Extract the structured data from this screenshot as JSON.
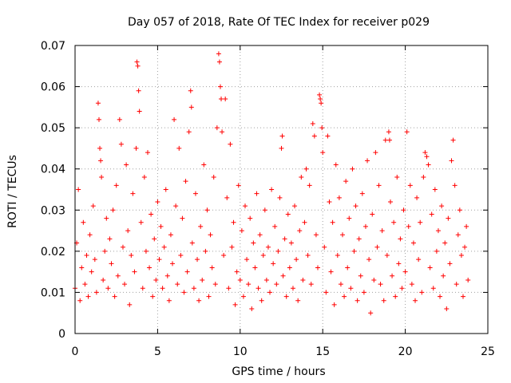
{
  "chart_data": {
    "type": "scatter",
    "title": "Day 057 of 2018, Rate Of TEC Index for receiver p029",
    "xlabel": "GPS time / hours",
    "ylabel": "ROTI / TECUs",
    "xlim": [
      0,
      25
    ],
    "ylim": [
      0,
      0.07
    ],
    "xticks": [
      0,
      5,
      10,
      15,
      20,
      25
    ],
    "xtick_labels": [
      "0",
      "5",
      "10",
      "15",
      "20",
      "25"
    ],
    "yticks": [
      0,
      0.01,
      0.02,
      0.03,
      0.04,
      0.05,
      0.06,
      0.07
    ],
    "ytick_labels": [
      "0",
      "0.01",
      "0.02",
      "0.03",
      "0.04",
      "0.05",
      "0.06",
      "0.07"
    ],
    "grid": true,
    "marker": "plus",
    "color": "#ff0000",
    "points": [
      [
        0.0,
        0.011
      ],
      [
        0.1,
        0.022
      ],
      [
        0.2,
        0.035
      ],
      [
        0.3,
        0.008
      ],
      [
        0.4,
        0.016
      ],
      [
        0.5,
        0.027
      ],
      [
        0.6,
        0.012
      ],
      [
        0.7,
        0.019
      ],
      [
        0.8,
        0.009
      ],
      [
        0.9,
        0.024
      ],
      [
        1.0,
        0.015
      ],
      [
        1.1,
        0.031
      ],
      [
        1.2,
        0.018
      ],
      [
        1.3,
        0.01
      ],
      [
        1.4,
        0.056
      ],
      [
        1.45,
        0.052
      ],
      [
        1.5,
        0.045
      ],
      [
        1.55,
        0.042
      ],
      [
        1.6,
        0.038
      ],
      [
        1.7,
        0.013
      ],
      [
        1.8,
        0.02
      ],
      [
        1.9,
        0.028
      ],
      [
        2.0,
        0.011
      ],
      [
        2.1,
        0.023
      ],
      [
        2.2,
        0.017
      ],
      [
        2.3,
        0.03
      ],
      [
        2.4,
        0.009
      ],
      [
        2.5,
        0.036
      ],
      [
        2.6,
        0.014
      ],
      [
        2.7,
        0.052
      ],
      [
        2.8,
        0.046
      ],
      [
        2.9,
        0.021
      ],
      [
        3.0,
        0.012
      ],
      [
        3.1,
        0.041
      ],
      [
        3.2,
        0.025
      ],
      [
        3.3,
        0.007
      ],
      [
        3.4,
        0.019
      ],
      [
        3.5,
        0.034
      ],
      [
        3.6,
        0.015
      ],
      [
        3.7,
        0.045
      ],
      [
        3.75,
        0.066
      ],
      [
        3.8,
        0.065
      ],
      [
        3.85,
        0.059
      ],
      [
        3.9,
        0.054
      ],
      [
        4.0,
        0.027
      ],
      [
        4.1,
        0.011
      ],
      [
        4.2,
        0.038
      ],
      [
        4.3,
        0.02
      ],
      [
        4.4,
        0.044
      ],
      [
        4.5,
        0.016
      ],
      [
        4.6,
        0.029
      ],
      [
        4.7,
        0.009
      ],
      [
        4.8,
        0.023
      ],
      [
        4.9,
        0.013
      ],
      [
        5.0,
        0.032
      ],
      [
        5.1,
        0.018
      ],
      [
        5.2,
        0.026
      ],
      [
        5.3,
        0.011
      ],
      [
        5.4,
        0.021
      ],
      [
        5.5,
        0.035
      ],
      [
        5.6,
        0.014
      ],
      [
        5.7,
        0.008
      ],
      [
        5.8,
        0.024
      ],
      [
        5.9,
        0.017
      ],
      [
        6.0,
        0.052
      ],
      [
        6.1,
        0.031
      ],
      [
        6.2,
        0.012
      ],
      [
        6.3,
        0.045
      ],
      [
        6.4,
        0.019
      ],
      [
        6.5,
        0.028
      ],
      [
        6.6,
        0.01
      ],
      [
        6.7,
        0.037
      ],
      [
        6.8,
        0.015
      ],
      [
        6.9,
        0.049
      ],
      [
        7.0,
        0.059
      ],
      [
        7.05,
        0.055
      ],
      [
        7.1,
        0.022
      ],
      [
        7.2,
        0.011
      ],
      [
        7.3,
        0.034
      ],
      [
        7.4,
        0.018
      ],
      [
        7.5,
        0.008
      ],
      [
        7.6,
        0.026
      ],
      [
        7.7,
        0.013
      ],
      [
        7.8,
        0.041
      ],
      [
        7.9,
        0.02
      ],
      [
        8.0,
        0.03
      ],
      [
        8.1,
        0.009
      ],
      [
        8.2,
        0.024
      ],
      [
        8.3,
        0.016
      ],
      [
        8.4,
        0.038
      ],
      [
        8.5,
        0.012
      ],
      [
        8.6,
        0.05
      ],
      [
        8.7,
        0.068
      ],
      [
        8.75,
        0.066
      ],
      [
        8.8,
        0.06
      ],
      [
        8.85,
        0.057
      ],
      [
        8.9,
        0.049
      ],
      [
        9.0,
        0.019
      ],
      [
        9.1,
        0.057
      ],
      [
        9.2,
        0.033
      ],
      [
        9.3,
        0.011
      ],
      [
        9.4,
        0.046
      ],
      [
        9.5,
        0.021
      ],
      [
        9.6,
        0.027
      ],
      [
        9.7,
        0.007
      ],
      [
        9.8,
        0.015
      ],
      [
        9.9,
        0.036
      ],
      [
        10.0,
        0.013
      ],
      [
        10.1,
        0.025
      ],
      [
        10.2,
        0.009
      ],
      [
        10.3,
        0.031
      ],
      [
        10.4,
        0.018
      ],
      [
        10.5,
        0.012
      ],
      [
        10.6,
        0.028
      ],
      [
        10.7,
        0.006
      ],
      [
        10.8,
        0.022
      ],
      [
        10.9,
        0.016
      ],
      [
        11.0,
        0.034
      ],
      [
        11.1,
        0.011
      ],
      [
        11.2,
        0.024
      ],
      [
        11.3,
        0.008
      ],
      [
        11.4,
        0.019
      ],
      [
        11.5,
        0.03
      ],
      [
        11.6,
        0.013
      ],
      [
        11.7,
        0.021
      ],
      [
        11.8,
        0.01
      ],
      [
        11.9,
        0.035
      ],
      [
        12.0,
        0.017
      ],
      [
        12.1,
        0.026
      ],
      [
        12.2,
        0.012
      ],
      [
        12.3,
        0.02
      ],
      [
        12.4,
        0.033
      ],
      [
        12.5,
        0.045
      ],
      [
        12.55,
        0.048
      ],
      [
        12.6,
        0.014
      ],
      [
        12.7,
        0.023
      ],
      [
        12.8,
        0.009
      ],
      [
        12.9,
        0.029
      ],
      [
        13.0,
        0.016
      ],
      [
        13.1,
        0.022
      ],
      [
        13.2,
        0.011
      ],
      [
        13.3,
        0.031
      ],
      [
        13.4,
        0.018
      ],
      [
        13.5,
        0.008
      ],
      [
        13.6,
        0.025
      ],
      [
        13.7,
        0.038
      ],
      [
        13.8,
        0.013
      ],
      [
        13.9,
        0.027
      ],
      [
        14.0,
        0.04
      ],
      [
        14.1,
        0.019
      ],
      [
        14.2,
        0.036
      ],
      [
        14.3,
        0.012
      ],
      [
        14.4,
        0.051
      ],
      [
        14.5,
        0.048
      ],
      [
        14.6,
        0.024
      ],
      [
        14.7,
        0.016
      ],
      [
        14.8,
        0.058
      ],
      [
        14.85,
        0.057
      ],
      [
        14.9,
        0.056
      ],
      [
        14.95,
        0.05
      ],
      [
        15.0,
        0.044
      ],
      [
        15.1,
        0.021
      ],
      [
        15.2,
        0.01
      ],
      [
        15.3,
        0.048
      ],
      [
        15.4,
        0.032
      ],
      [
        15.5,
        0.015
      ],
      [
        15.6,
        0.027
      ],
      [
        15.7,
        0.007
      ],
      [
        15.8,
        0.041
      ],
      [
        15.9,
        0.019
      ],
      [
        16.0,
        0.033
      ],
      [
        16.1,
        0.012
      ],
      [
        16.2,
        0.024
      ],
      [
        16.3,
        0.009
      ],
      [
        16.4,
        0.037
      ],
      [
        16.5,
        0.016
      ],
      [
        16.6,
        0.028
      ],
      [
        16.7,
        0.011
      ],
      [
        16.8,
        0.04
      ],
      [
        16.9,
        0.02
      ],
      [
        17.0,
        0.031
      ],
      [
        17.1,
        0.008
      ],
      [
        17.2,
        0.023
      ],
      [
        17.3,
        0.014
      ],
      [
        17.4,
        0.034
      ],
      [
        17.5,
        0.01
      ],
      [
        17.6,
        0.026
      ],
      [
        17.7,
        0.042
      ],
      [
        17.8,
        0.018
      ],
      [
        17.9,
        0.005
      ],
      [
        18.0,
        0.029
      ],
      [
        18.1,
        0.013
      ],
      [
        18.2,
        0.044
      ],
      [
        18.3,
        0.021
      ],
      [
        18.4,
        0.036
      ],
      [
        18.5,
        0.012
      ],
      [
        18.6,
        0.025
      ],
      [
        18.7,
        0.008
      ],
      [
        18.8,
        0.047
      ],
      [
        18.9,
        0.019
      ],
      [
        19.0,
        0.049
      ],
      [
        19.05,
        0.047
      ],
      [
        19.1,
        0.032
      ],
      [
        19.2,
        0.014
      ],
      [
        19.3,
        0.027
      ],
      [
        19.4,
        0.009
      ],
      [
        19.5,
        0.038
      ],
      [
        19.6,
        0.017
      ],
      [
        19.7,
        0.023
      ],
      [
        19.8,
        0.011
      ],
      [
        19.9,
        0.03
      ],
      [
        20.0,
        0.015
      ],
      [
        20.1,
        0.049
      ],
      [
        20.2,
        0.026
      ],
      [
        20.3,
        0.036
      ],
      [
        20.4,
        0.012
      ],
      [
        20.5,
        0.022
      ],
      [
        20.6,
        0.008
      ],
      [
        20.7,
        0.033
      ],
      [
        20.8,
        0.018
      ],
      [
        20.9,
        0.027
      ],
      [
        21.0,
        0.01
      ],
      [
        21.1,
        0.038
      ],
      [
        21.2,
        0.044
      ],
      [
        21.3,
        0.043
      ],
      [
        21.4,
        0.041
      ],
      [
        21.5,
        0.016
      ],
      [
        21.6,
        0.029
      ],
      [
        21.7,
        0.011
      ],
      [
        21.8,
        0.035
      ],
      [
        21.9,
        0.02
      ],
      [
        22.0,
        0.025
      ],
      [
        22.1,
        0.009
      ],
      [
        22.2,
        0.031
      ],
      [
        22.3,
        0.014
      ],
      [
        22.4,
        0.022
      ],
      [
        22.5,
        0.006
      ],
      [
        22.6,
        0.028
      ],
      [
        22.7,
        0.017
      ],
      [
        22.8,
        0.042
      ],
      [
        22.9,
        0.047
      ],
      [
        23.0,
        0.036
      ],
      [
        23.1,
        0.012
      ],
      [
        23.2,
        0.024
      ],
      [
        23.3,
        0.03
      ],
      [
        23.4,
        0.019
      ],
      [
        23.5,
        0.009
      ],
      [
        23.6,
        0.021
      ],
      [
        23.7,
        0.026
      ],
      [
        23.8,
        0.013
      ]
    ]
  }
}
